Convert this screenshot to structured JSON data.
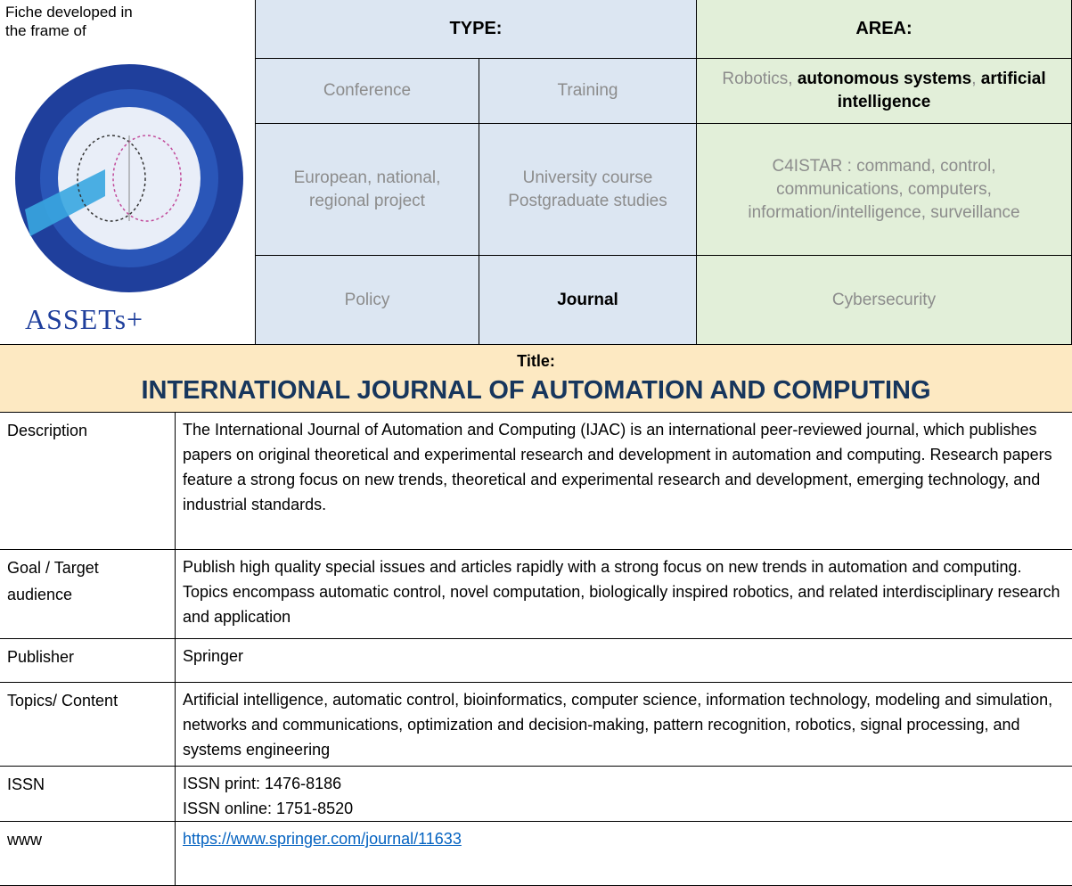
{
  "header": {
    "fiche_note": "Fiche developed in the frame of",
    "logo_text": "ASSETs+",
    "type": {
      "heading": "TYPE:",
      "rows": [
        [
          "Conference",
          "Training"
        ],
        [
          "European, national, regional project",
          "University course Postgraduate studies"
        ],
        [
          "Policy",
          "Journal"
        ]
      ],
      "selected": [
        2,
        1
      ]
    },
    "area": {
      "heading": "AREA:",
      "rows": [
        [
          {
            "text": "Robotics, ",
            "bold": false
          },
          {
            "text": "autonomous systems",
            "bold": true
          },
          {
            "text": ", ",
            "bold": false
          },
          {
            "text": "artificial intelligence",
            "bold": true
          }
        ],
        [
          {
            "text": "C4ISTAR : command, control, communications, computers, information/intelligence, surveillance",
            "bold": false
          }
        ],
        [
          {
            "text": "Cybersecurity",
            "bold": false
          }
        ]
      ]
    }
  },
  "title": {
    "label": "Title:",
    "text": "INTERNATIONAL JOURNAL OF AUTOMATION AND COMPUTING"
  },
  "details": {
    "rows": [
      {
        "label": "Description",
        "content": [
          "The International Journal of Automation and Computing (IJAC) is an international peer-reviewed journal, which publishes papers on original theoretical and experimental research and development in automation and computing. Research papers feature a strong focus on new trends, theoretical and experimental research and development, emerging technology, and industrial standards."
        ]
      },
      {
        "label": "Goal / Target audience",
        "content": [
          "Publish high quality special issues and articles rapidly with a strong focus on new trends in automation and computing. Topics encompass automatic control, novel computation, biologically inspired robotics, and related interdisciplinary research and application"
        ]
      },
      {
        "label": "Publisher",
        "content": [
          "Springer"
        ]
      },
      {
        "label": "Topics/ Content",
        "content": [
          "Artificial intelligence, automatic control, bioinformatics, computer science, information technology, modeling and simulation, networks and communications, optimization and decision-making, pattern recognition, robotics, signal processing, and systems engineering"
        ]
      },
      {
        "label": "ISSN",
        "content": [
          "ISSN print: 1476-8186",
          "ISSN online: 1751-8520"
        ]
      },
      {
        "label": "www",
        "link": "https://www.springer.com/journal/11633"
      }
    ]
  }
}
